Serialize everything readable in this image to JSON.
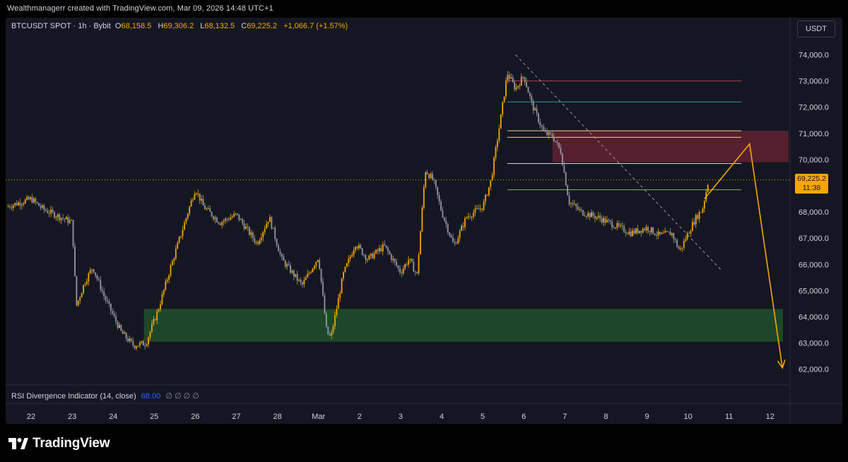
{
  "credit": "Wealthmanagerr created with TradingView.com, Mar 09, 2026 14:48 UTC+1",
  "symbol": {
    "name": "BTCUSDT SPOT · 1h · Bybit",
    "o_label": "O",
    "o_value": "68,158.5",
    "h_label": "H",
    "h_value": "69,306.2",
    "l_label": "L",
    "l_value": "68,132.5",
    "c_label": "C",
    "c_value": "69,225.2",
    "change": "+1,066.7 (+1.57%)"
  },
  "currency_button": "USDT",
  "price_tag": {
    "price": "69,225.2",
    "countdown": "11:38"
  },
  "rsi": {
    "label": "RSI Divergence Indicator (14, close)",
    "value": "68.00",
    "na": "∅ ∅ ∅ ∅"
  },
  "brand": "TradingView",
  "colors": {
    "background": "#141722",
    "up": "#f7a600",
    "down": "#9598a1",
    "support_zone": "#1f4a2a",
    "resistance_zone": "#5a2030",
    "arrow": "#f7a600"
  },
  "chart_data": {
    "type": "candlestick",
    "symbol": "BTCUSDT",
    "interval": "1h",
    "ylim": [
      61800,
      74400
    ],
    "y_ticks": [
      "74,000.0",
      "73,000.0",
      "72,000.0",
      "71,000.0",
      "70,000.0",
      "68,000.0",
      "67,000.0",
      "66,000.0",
      "65,000.0",
      "64,000.0",
      "63,000.0",
      "62,000.0"
    ],
    "x_ticks": [
      "22",
      "23",
      "24",
      "25",
      "26",
      "27",
      "28",
      "Mar",
      "2",
      "3",
      "4",
      "5",
      "6",
      "7",
      "8",
      "9",
      "10",
      "11",
      "12"
    ],
    "price_path": [
      [
        -0.6,
        68200
      ],
      [
        0.0,
        68500
      ],
      [
        0.3,
        68100
      ],
      [
        1.0,
        67600
      ],
      [
        1.1,
        64400
      ],
      [
        1.3,
        65300
      ],
      [
        1.5,
        65900
      ],
      [
        1.8,
        64700
      ],
      [
        2.2,
        63400
      ],
      [
        2.5,
        62900
      ],
      [
        2.8,
        63000
      ],
      [
        3.1,
        64300
      ],
      [
        3.4,
        65900
      ],
      [
        3.7,
        67400
      ],
      [
        4.0,
        68900
      ],
      [
        4.2,
        68200
      ],
      [
        4.6,
        67600
      ],
      [
        5.0,
        67900
      ],
      [
        5.5,
        66800
      ],
      [
        5.8,
        67800
      ],
      [
        6.1,
        66200
      ],
      [
        6.6,
        65200
      ],
      [
        7.0,
        66300
      ],
      [
        7.2,
        63400
      ],
      [
        7.3,
        63200
      ],
      [
        7.6,
        65600
      ],
      [
        7.9,
        66800
      ],
      [
        8.2,
        66200
      ],
      [
        8.6,
        66700
      ],
      [
        9.0,
        65700
      ],
      [
        9.2,
        66200
      ],
      [
        9.4,
        65600
      ],
      [
        9.6,
        69600
      ],
      [
        9.8,
        69200
      ],
      [
        10.0,
        68000
      ],
      [
        10.3,
        66700
      ],
      [
        10.6,
        67800
      ],
      [
        11.0,
        68200
      ],
      [
        11.2,
        69200
      ],
      [
        11.4,
        71200
      ],
      [
        11.6,
        73300
      ],
      [
        11.8,
        72700
      ],
      [
        12.0,
        73200
      ],
      [
        12.2,
        72100
      ],
      [
        12.5,
        71000
      ],
      [
        12.7,
        70900
      ],
      [
        12.9,
        70300
      ],
      [
        13.1,
        68400
      ],
      [
        13.4,
        68000
      ],
      [
        13.8,
        67800
      ],
      [
        14.2,
        67500
      ],
      [
        14.6,
        67200
      ],
      [
        15.0,
        67400
      ],
      [
        15.3,
        67100
      ],
      [
        15.6,
        67200
      ],
      [
        15.8,
        66500
      ],
      [
        16.0,
        67200
      ],
      [
        16.2,
        67800
      ],
      [
        16.35,
        68100
      ],
      [
        16.5,
        69225
      ]
    ],
    "annotations": {
      "support_zone": [
        63050,
        64300
      ],
      "resistance_zone": [
        69900,
        71100
      ],
      "horizontal_levels": [
        73000,
        72200,
        71100,
        70850,
        69850,
        68850
      ],
      "current_price": 69225.2,
      "trendline": {
        "from": [
          11.8,
          74000
        ],
        "to": [
          16.8,
          65800
        ]
      },
      "projection": [
        [
          16.4,
          68500
        ],
        [
          17.5,
          70600
        ],
        [
          18.3,
          62050
        ]
      ]
    }
  }
}
